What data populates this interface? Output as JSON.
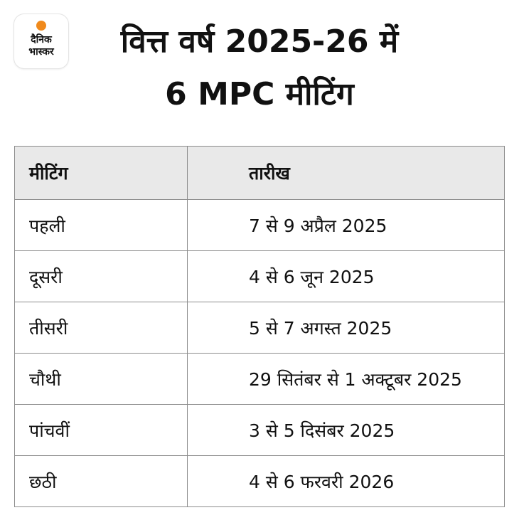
{
  "logo": {
    "line1": "दैनिक",
    "line2": "भास्कर",
    "accent_color": "#f08a1c"
  },
  "headline": {
    "line1": "वित्त वर्ष 2025-26 में",
    "line2": "6 MPC मीटिंग"
  },
  "table": {
    "headers": [
      "मीटिंग",
      "तारीख"
    ],
    "rows": [
      {
        "meeting": "पहली",
        "date": "7 से 9 अप्रैल 2025"
      },
      {
        "meeting": "दूसरी",
        "date": "4 से 6 जून 2025"
      },
      {
        "meeting": "तीसरी",
        "date": "5 से 7 अगस्त 2025"
      },
      {
        "meeting": "चौथी",
        "date": "29 सितंबर से 1 अक्टूबर 2025"
      },
      {
        "meeting": "पांचवीं",
        "date": "3 से 5 दिसंबर 2025"
      },
      {
        "meeting": "छठी",
        "date": "4 से 6 फरवरी 2026"
      }
    ]
  }
}
